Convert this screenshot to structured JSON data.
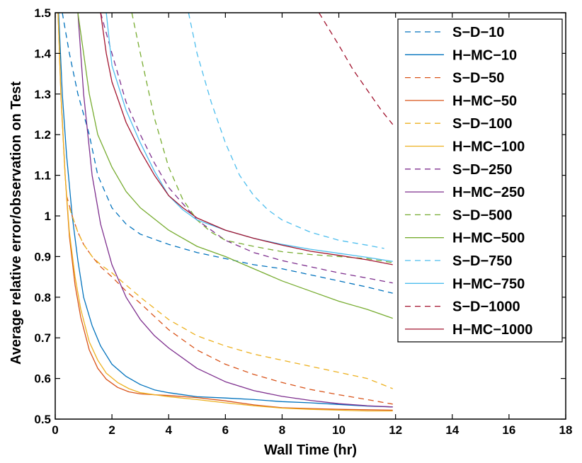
{
  "chart_data": {
    "type": "line",
    "title": "",
    "xlabel": "Wall Time (hr)",
    "ylabel": "Average relative error/observation on Test",
    "xlim": [
      0,
      18
    ],
    "ylim": [
      0.5,
      1.5
    ],
    "xticks": [
      0,
      2,
      4,
      6,
      8,
      10,
      12,
      14,
      16,
      18
    ],
    "yticks": [
      0.5,
      0.6,
      0.7,
      0.8,
      0.9,
      1.0,
      1.1,
      1.2,
      1.3,
      1.4,
      1.5
    ],
    "xtick_labels": [
      "0",
      "2",
      "4",
      "6",
      "8",
      "10",
      "12",
      "14",
      "16",
      "18"
    ],
    "ytick_labels": [
      "0.5",
      "0.6",
      "0.7",
      "0.8",
      "0.9",
      "1",
      "1.1",
      "1.2",
      "1.3",
      "1.4",
      "1.5"
    ],
    "grid": false,
    "legend_position": "top-right",
    "series": [
      {
        "name": "S−D−10",
        "color": "#0072bd",
        "dash": "dashed",
        "x": [
          0.25,
          0.5,
          0.8,
          1.0,
          1.2,
          1.5,
          2.0,
          2.5,
          3.0,
          4.0,
          5.0,
          6.0,
          7.0,
          8.0,
          9.0,
          10.0,
          11.0,
          11.9
        ],
        "y": [
          1.5,
          1.4,
          1.3,
          1.25,
          1.2,
          1.1,
          1.02,
          0.98,
          0.955,
          0.93,
          0.91,
          0.895,
          0.88,
          0.87,
          0.855,
          0.84,
          0.825,
          0.81
        ]
      },
      {
        "name": "H−MC−10",
        "color": "#0072bd",
        "dash": "solid",
        "x": [
          0.12,
          0.25,
          0.4,
          0.6,
          0.8,
          1.0,
          1.3,
          1.6,
          2.0,
          2.5,
          3.0,
          3.5,
          4.0,
          5.0,
          6.0,
          7.0,
          8.0,
          9.0,
          10.0,
          11.0,
          11.9
        ],
        "y": [
          1.5,
          1.3,
          1.15,
          1.0,
          0.89,
          0.8,
          0.73,
          0.68,
          0.635,
          0.605,
          0.585,
          0.572,
          0.565,
          0.555,
          0.552,
          0.548,
          0.543,
          0.54,
          0.536,
          0.532,
          0.53
        ]
      },
      {
        "name": "S−D−50",
        "color": "#d95319",
        "dash": "dashed",
        "x": [
          0.4,
          0.6,
          0.8,
          1.0,
          1.3,
          1.6,
          2.0,
          2.5,
          3.0,
          4.0,
          5.0,
          6.0,
          7.0,
          8.0,
          9.0,
          10.0,
          11.0,
          11.9
        ],
        "y": [
          1.05,
          1.0,
          0.96,
          0.93,
          0.9,
          0.875,
          0.85,
          0.815,
          0.785,
          0.72,
          0.67,
          0.635,
          0.61,
          0.59,
          0.573,
          0.56,
          0.548,
          0.537
        ]
      },
      {
        "name": "H−MC−50",
        "color": "#d95319",
        "dash": "solid",
        "x": [
          0.1,
          0.2,
          0.35,
          0.5,
          0.7,
          0.9,
          1.2,
          1.5,
          1.8,
          2.2,
          2.6,
          3.0,
          3.5,
          4.0,
          5.0,
          6.0,
          7.0,
          8.0,
          9.0,
          10.0,
          11.0,
          11.9
        ],
        "y": [
          1.5,
          1.3,
          1.1,
          0.95,
          0.83,
          0.75,
          0.67,
          0.625,
          0.598,
          0.578,
          0.567,
          0.562,
          0.56,
          0.558,
          0.553,
          0.545,
          0.535,
          0.528,
          0.526,
          0.524,
          0.523,
          0.522
        ]
      },
      {
        "name": "S−D−100",
        "color": "#edb120",
        "dash": "dashed",
        "x": [
          0.5,
          0.8,
          1.0,
          1.3,
          1.6,
          2.0,
          2.5,
          3.0,
          4.0,
          5.0,
          6.0,
          7.0,
          8.0,
          9.0,
          10.0,
          11.0,
          11.9
        ],
        "y": [
          1.02,
          0.96,
          0.93,
          0.9,
          0.88,
          0.86,
          0.83,
          0.8,
          0.745,
          0.705,
          0.68,
          0.66,
          0.645,
          0.63,
          0.615,
          0.6,
          0.575
        ]
      },
      {
        "name": "H−MC−100",
        "color": "#edb120",
        "dash": "solid",
        "x": [
          0.1,
          0.2,
          0.35,
          0.5,
          0.7,
          0.9,
          1.2,
          1.5,
          1.8,
          2.2,
          2.6,
          3.0,
          4.0,
          5.0,
          6.0,
          7.0,
          8.0,
          9.0,
          10.0,
          11.0,
          11.9
        ],
        "y": [
          1.5,
          1.3,
          1.1,
          0.96,
          0.85,
          0.77,
          0.69,
          0.645,
          0.613,
          0.59,
          0.575,
          0.565,
          0.555,
          0.548,
          0.54,
          0.533,
          0.527,
          0.524,
          0.522,
          0.52,
          0.52
        ]
      },
      {
        "name": "S−D−250",
        "color": "#7e2f8e",
        "dash": "dashed",
        "x": [
          1.6,
          2.0,
          2.5,
          3.0,
          3.5,
          4.0,
          5.0,
          6.0,
          7.0,
          8.0,
          9.0,
          10.0,
          11.0,
          11.9
        ],
        "y": [
          1.5,
          1.4,
          1.28,
          1.2,
          1.13,
          1.07,
          0.99,
          0.94,
          0.91,
          0.89,
          0.875,
          0.86,
          0.847,
          0.835
        ]
      },
      {
        "name": "H−MC−250",
        "color": "#7e2f8e",
        "dash": "solid",
        "x": [
          0.8,
          1.0,
          1.3,
          1.6,
          2.0,
          2.5,
          3.0,
          3.5,
          4.0,
          5.0,
          6.0,
          7.0,
          8.0,
          9.0,
          10.0,
          11.0,
          11.9
        ],
        "y": [
          1.5,
          1.3,
          1.1,
          0.98,
          0.88,
          0.8,
          0.745,
          0.705,
          0.675,
          0.625,
          0.592,
          0.57,
          0.556,
          0.546,
          0.538,
          0.533,
          0.53
        ]
      },
      {
        "name": "S−D−500",
        "color": "#77ac30",
        "dash": "dashed",
        "x": [
          2.7,
          3.0,
          3.5,
          4.0,
          4.5,
          5.0,
          5.5,
          6.0,
          7.0,
          8.0,
          9.0,
          10.0,
          11.0,
          11.9
        ],
        "y": [
          1.5,
          1.4,
          1.24,
          1.12,
          1.04,
          0.99,
          0.96,
          0.94,
          0.925,
          0.912,
          0.905,
          0.9,
          0.895,
          0.885
        ]
      },
      {
        "name": "H−MC−500",
        "color": "#77ac30",
        "dash": "solid",
        "x": [
          0.8,
          1.0,
          1.2,
          1.5,
          2.0,
          2.5,
          3.0,
          4.0,
          5.0,
          6.0,
          7.0,
          8.0,
          9.0,
          10.0,
          11.0,
          11.9
        ],
        "y": [
          1.5,
          1.4,
          1.3,
          1.2,
          1.12,
          1.06,
          1.02,
          0.965,
          0.925,
          0.9,
          0.87,
          0.84,
          0.815,
          0.79,
          0.77,
          0.748
        ]
      },
      {
        "name": "S−D−750",
        "color": "#4dbeee",
        "dash": "dashed",
        "x": [
          4.7,
          5.0,
          5.5,
          6.0,
          6.5,
          7.0,
          7.5,
          8.0,
          9.0,
          10.0,
          11.0,
          11.6
        ],
        "y": [
          1.5,
          1.4,
          1.28,
          1.18,
          1.1,
          1.05,
          1.015,
          0.99,
          0.96,
          0.94,
          0.928,
          0.92
        ]
      },
      {
        "name": "H−MC−750",
        "color": "#4dbeee",
        "dash": "solid",
        "x": [
          1.8,
          2.0,
          2.5,
          3.0,
          3.5,
          4.0,
          4.5,
          5.0,
          6.0,
          7.0,
          8.0,
          9.0,
          10.0,
          11.0,
          11.9
        ],
        "y": [
          1.5,
          1.37,
          1.26,
          1.18,
          1.11,
          1.05,
          1.015,
          0.99,
          0.965,
          0.945,
          0.93,
          0.918,
          0.908,
          0.898,
          0.888
        ]
      },
      {
        "name": "S−D−1000",
        "color": "#a2142f",
        "dash": "dashed",
        "x": [
          9.3,
          10.0,
          10.5,
          11.0,
          11.5,
          11.9
        ],
        "y": [
          1.5,
          1.42,
          1.36,
          1.31,
          1.26,
          1.225
        ]
      },
      {
        "name": "H−MC−1000",
        "color": "#a2142f",
        "dash": "solid",
        "x": [
          1.6,
          1.8,
          2.0,
          2.5,
          3.0,
          3.5,
          4.0,
          4.5,
          5.0,
          6.0,
          7.0,
          8.0,
          9.0,
          10.0,
          11.0,
          11.9
        ],
        "y": [
          1.5,
          1.4,
          1.33,
          1.23,
          1.16,
          1.1,
          1.05,
          1.02,
          0.995,
          0.965,
          0.945,
          0.928,
          0.913,
          0.903,
          0.892,
          0.88
        ]
      }
    ]
  }
}
